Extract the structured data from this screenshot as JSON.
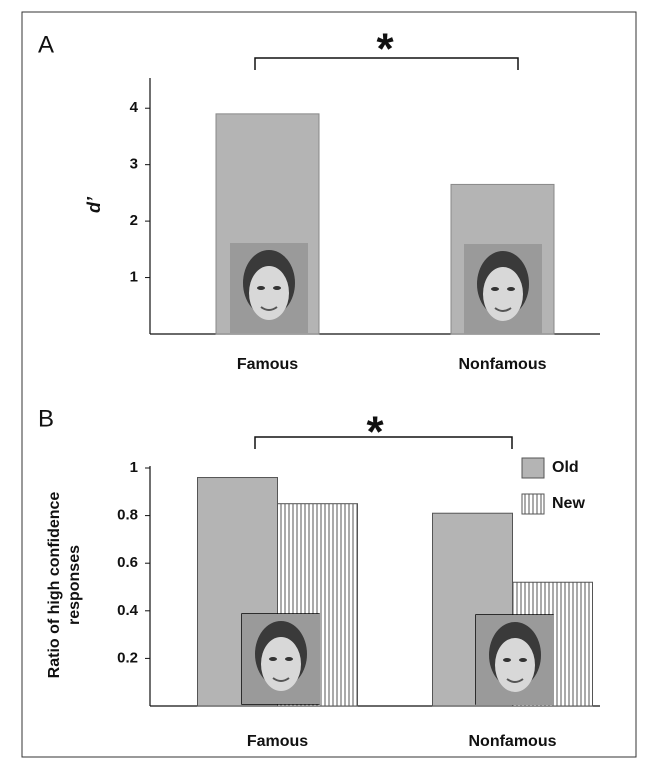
{
  "chart_data": [
    {
      "type": "bar",
      "panel": "A",
      "annotation": "*",
      "ylabel": "d’",
      "categories": [
        "Famous",
        "Nonfamous"
      ],
      "values": [
        3.9,
        2.65
      ],
      "color": "#b4b4b4",
      "ylim": [
        0,
        4.5
      ],
      "yticks": [
        1,
        2,
        3,
        4
      ]
    },
    {
      "type": "grouped_bar",
      "panel": "B",
      "annotation": "*",
      "ylabel": [
        "Ratio of high confidence",
        "responses"
      ],
      "categories": [
        "Famous",
        "Nonfamous"
      ],
      "series": [
        {
          "name": "Old",
          "color": "#b4b4b4",
          "values": [
            0.96,
            0.81
          ]
        },
        {
          "name": "New",
          "color": "#ffffff",
          "hatch": true,
          "values": [
            0.85,
            0.52
          ]
        }
      ],
      "ylim": [
        0,
        1
      ],
      "yticks": [
        0.2,
        0.4,
        0.6,
        0.8,
        1
      ],
      "legend": "upper right"
    }
  ]
}
